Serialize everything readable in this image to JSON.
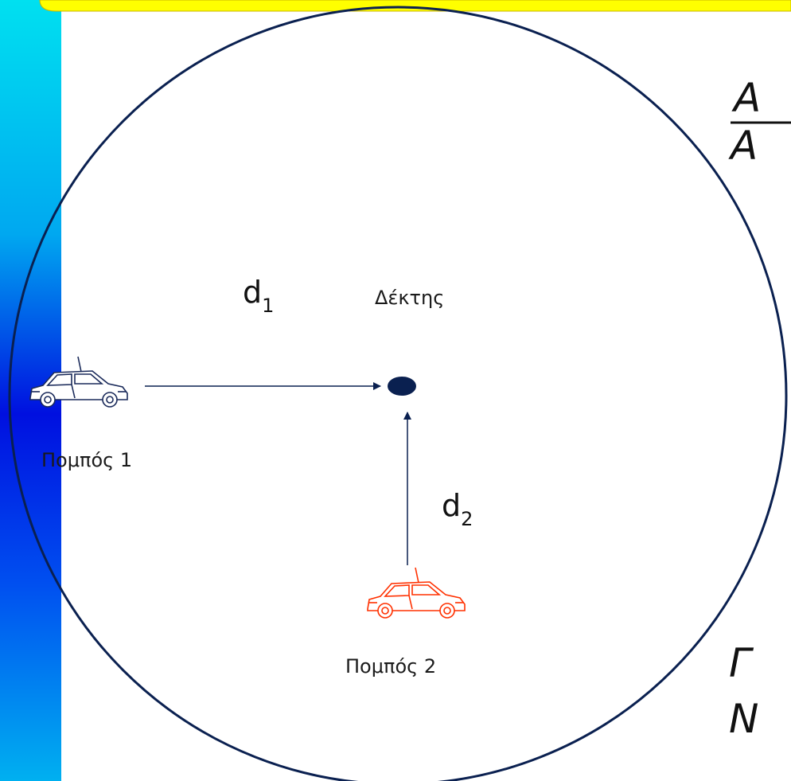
{
  "diagram": {
    "distance_1": {
      "symbol": "d",
      "subscript": "1"
    },
    "distance_2": {
      "symbol": "d",
      "subscript": "2"
    },
    "receiver": "Δέκτης",
    "transmitter_1": "Πομπός 1",
    "transmitter_2": "Πομπός 2",
    "side_text": [
      "A",
      "A",
      "Γ",
      "N"
    ]
  }
}
